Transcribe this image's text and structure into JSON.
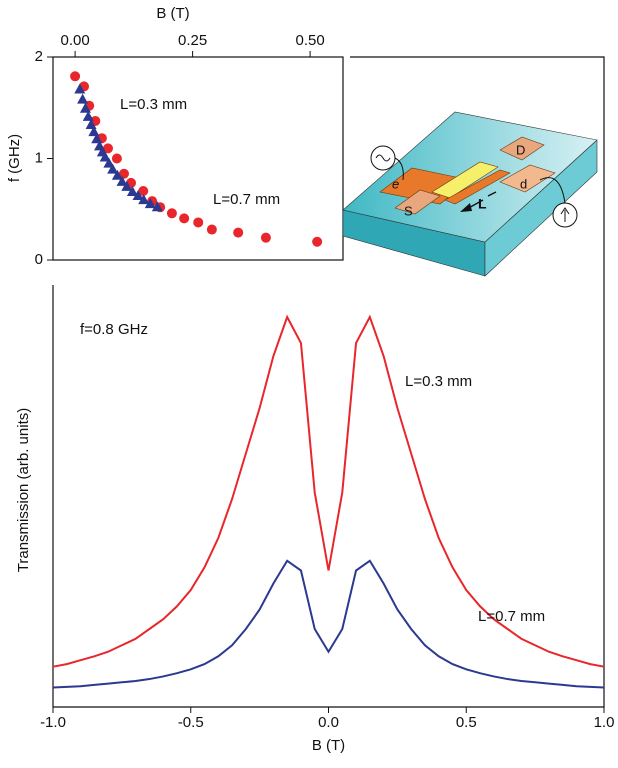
{
  "chart_data": [
    {
      "type": "line",
      "xlabel": "B (T)",
      "ylabel": "Transmission (arb. units)",
      "annotation": "f=0.8 GHz",
      "xlim": [
        -1,
        1
      ],
      "ylim": [
        0,
        1
      ],
      "xticks": [
        {
          "value": -1,
          "label": "-1.0"
        },
        -0.5,
        {
          "value": 0,
          "label": "0.0"
        },
        0.5,
        {
          "value": 1,
          "label": "1.0"
        }
      ],
      "x": [
        -1,
        -0.95,
        -0.9,
        -0.85,
        -0.8,
        -0.75,
        -0.7,
        -0.65,
        -0.6,
        -0.55,
        -0.5,
        -0.45,
        -0.4,
        -0.35,
        -0.3,
        -0.25,
        -0.2,
        -0.15,
        -0.1,
        -0.05,
        0,
        0.05,
        0.1,
        0.15,
        0.2,
        0.25,
        0.3,
        0.35,
        0.4,
        0.45,
        0.5,
        0.55,
        0.6,
        0.65,
        0.7,
        0.75,
        0.8,
        0.85,
        0.9,
        0.95,
        1
      ],
      "series": [
        {
          "name": "L=0.3 mm",
          "color": "#e8262b",
          "values": [
            0.062,
            0.066,
            0.072,
            0.078,
            0.085,
            0.095,
            0.105,
            0.12,
            0.135,
            0.155,
            0.18,
            0.215,
            0.26,
            0.32,
            0.39,
            0.46,
            0.54,
            0.6,
            0.56,
            0.33,
            0.21,
            0.33,
            0.56,
            0.6,
            0.54,
            0.46,
            0.39,
            0.32,
            0.26,
            0.215,
            0.18,
            0.155,
            0.135,
            0.12,
            0.105,
            0.095,
            0.085,
            0.078,
            0.072,
            0.066,
            0.062
          ]
        },
        {
          "name": "L=0.7 mm",
          "color": "#2b3990",
          "values": [
            0.03,
            0.031,
            0.032,
            0.034,
            0.036,
            0.038,
            0.04,
            0.043,
            0.047,
            0.052,
            0.058,
            0.066,
            0.078,
            0.095,
            0.12,
            0.15,
            0.19,
            0.225,
            0.21,
            0.12,
            0.085,
            0.12,
            0.21,
            0.225,
            0.19,
            0.15,
            0.12,
            0.095,
            0.078,
            0.066,
            0.058,
            0.052,
            0.047,
            0.043,
            0.04,
            0.038,
            0.036,
            0.034,
            0.032,
            0.031,
            0.03
          ]
        }
      ]
    },
    {
      "type": "scatter",
      "xlabel": "B (T)",
      "ylabel": "f (GHz)",
      "xlim": [
        -0.047,
        0.57
      ],
      "ylim": [
        0,
        2
      ],
      "xticks": [
        {
          "value": 0,
          "label": "0.00"
        },
        0.25,
        {
          "value": 0.5,
          "label": "0.50"
        }
      ],
      "yticks": [
        0,
        1,
        2
      ],
      "series": [
        {
          "name": "L=0.7 mm",
          "color": "#e8262b",
          "marker": "circle",
          "x": [
            0,
            0.019,
            0.03,
            0.043,
            0.057,
            0.07,
            0.089,
            0.104,
            0.119,
            0.145,
            0.164,
            0.181,
            0.206,
            0.232,
            0.262,
            0.291,
            0.347,
            0.406,
            0.515
          ],
          "values": [
            1.81,
            1.71,
            1.52,
            1.37,
            1.2,
            1.1,
            1.0,
            0.85,
            0.76,
            0.68,
            0.58,
            0.52,
            0.46,
            0.41,
            0.37,
            0.3,
            0.27,
            0.22,
            0.18
          ]
        },
        {
          "name": "L=0.3 mm",
          "color": "#2b3990",
          "marker": "triangle",
          "x": [
            0.01,
            0.016,
            0.022,
            0.028,
            0.034,
            0.04,
            0.046,
            0.052,
            0.058,
            0.064,
            0.072,
            0.08,
            0.09,
            0.1,
            0.11,
            0.122,
            0.134,
            0.146,
            0.16,
            0.175
          ],
          "values": [
            1.68,
            1.58,
            1.49,
            1.41,
            1.33,
            1.26,
            1.19,
            1.12,
            1.06,
            1.01,
            0.95,
            0.89,
            0.83,
            0.77,
            0.72,
            0.67,
            0.63,
            0.59,
            0.55,
            0.52
          ]
        }
      ]
    }
  ],
  "device": {
    "labels": [
      "e",
      "S",
      "D",
      "d",
      "L"
    ]
  }
}
